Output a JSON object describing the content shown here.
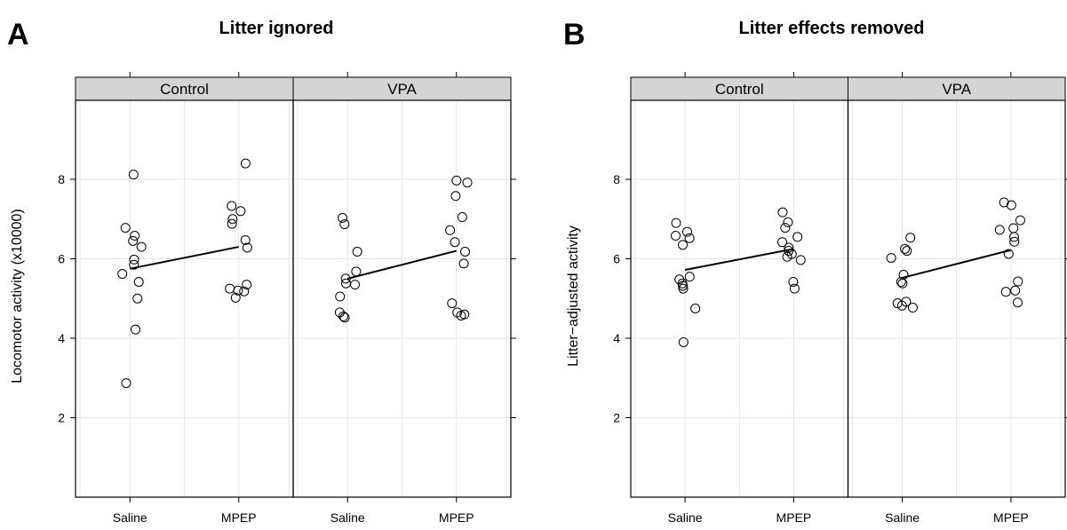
{
  "chart_data": [
    {
      "type": "scatter",
      "panel_label": "A",
      "title": "Litter ignored",
      "ylabel": "Locomotor activity (x10000)",
      "xlabel": "",
      "ylim": [
        0,
        10
      ],
      "yticks": [
        2,
        4,
        6,
        8
      ],
      "categories": [
        "Saline",
        "MPEP"
      ],
      "grid": true,
      "facets": [
        {
          "name": "Control",
          "points": {
            "Saline": [
              8.12,
              6.78,
              6.45,
              6.3,
              5.98,
              5.85,
              5.62,
              5.42,
              6.58,
              5.0,
              4.22,
              2.87
            ],
            "MPEP": [
              8.4,
              7.33,
              7.2,
              7.0,
              6.88,
              6.47,
              6.28,
              5.35,
              5.25,
              5.2,
              5.18,
              5.02
            ]
          },
          "means": [
            5.75,
            6.3
          ]
        },
        {
          "name": "VPA",
          "points": {
            "Saline": [
              7.03,
              6.87,
              6.18,
              5.68,
              5.5,
              5.38,
              5.35,
              5.05,
              4.65,
              4.55,
              4.52
            ],
            "MPEP": [
              7.97,
              7.92,
              7.58,
              7.05,
              6.72,
              6.42,
              6.18,
              5.88,
              4.88,
              4.65,
              4.6,
              4.57
            ]
          },
          "means": [
            5.5,
            6.2
          ]
        }
      ]
    },
    {
      "type": "scatter",
      "panel_label": "B",
      "title": "Litter effects removed",
      "ylabel": "Litter−adjusted activity",
      "xlabel": "",
      "ylim": [
        0,
        10
      ],
      "yticks": [
        2,
        4,
        6,
        8
      ],
      "categories": [
        "Saline",
        "MPEP"
      ],
      "grid": true,
      "facets": [
        {
          "name": "Control",
          "points": {
            "Saline": [
              6.9,
              6.68,
              6.58,
              6.52,
              6.35,
              5.55,
              5.48,
              5.38,
              5.32,
              5.25,
              4.75,
              3.9
            ],
            "MPEP": [
              7.17,
              6.92,
              6.78,
              6.55,
              6.42,
              6.28,
              6.2,
              6.12,
              6.05,
              5.97,
              5.42,
              5.25
            ]
          },
          "means": [
            5.72,
            6.25
          ]
        },
        {
          "name": "VPA",
          "points": {
            "Saline": [
              6.53,
              6.25,
              6.2,
              6.02,
              5.6,
              5.42,
              5.38,
              4.92,
              4.88,
              4.82,
              4.77
            ],
            "MPEP": [
              7.42,
              7.35,
              6.97,
              6.77,
              6.73,
              6.55,
              6.43,
              6.12,
              5.43,
              5.2,
              5.17,
              4.9
            ]
          },
          "means": [
            5.52,
            6.22
          ]
        }
      ]
    }
  ]
}
